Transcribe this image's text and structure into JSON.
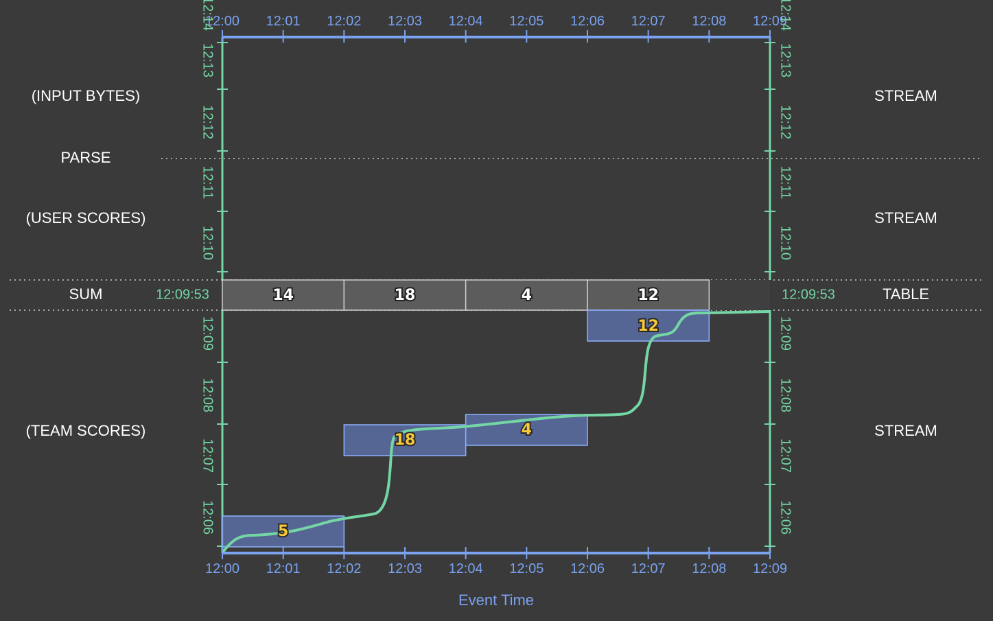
{
  "rows": {
    "input_bytes": "(INPUT BYTES)",
    "parse": "PARSE",
    "user_scores": "(USER SCORES)",
    "sum": "SUM",
    "team_scores": "(TEAM SCORES)"
  },
  "right_labels": {
    "input_bytes": "STREAM",
    "user_scores": "STREAM",
    "sum": "TABLE",
    "team_scores": "STREAM"
  },
  "event_time_ticks": [
    "12:00",
    "12:01",
    "12:02",
    "12:03",
    "12:04",
    "12:05",
    "12:06",
    "12:07",
    "12:08",
    "12:09"
  ],
  "processing_ticks_upper": [
    "12:14",
    "12:13",
    "12:12",
    "12:11",
    "12:10"
  ],
  "processing_ticks_lower": [
    "12:09",
    "12:08",
    "12:07",
    "12:06"
  ],
  "watermark_time": "12:09:53",
  "sum_cells": [
    "14",
    "18",
    "4",
    "12"
  ],
  "panes": [
    {
      "value": "5",
      "start": 0,
      "end": 2,
      "emitted_at": "12:06"
    },
    {
      "value": "18",
      "start": 2,
      "end": 4,
      "emitted_at": "12:07:30"
    },
    {
      "value": "4",
      "start": 4,
      "end": 6,
      "emitted_at": "12:07:40"
    },
    {
      "value": "12",
      "start": 6,
      "end": 8,
      "emitted_at": "12:09:15"
    }
  ],
  "x_axis_title": "Event Time",
  "colors": {
    "background": "#3a3a3a",
    "event_axis": "#7aa2f0",
    "processing_axis": "#74d6a4",
    "pane_fill": "#5b6fa6",
    "pane_stroke": "#8fb0ff",
    "value": "#f7c83a",
    "table_cell": "#5c5c5c"
  }
}
